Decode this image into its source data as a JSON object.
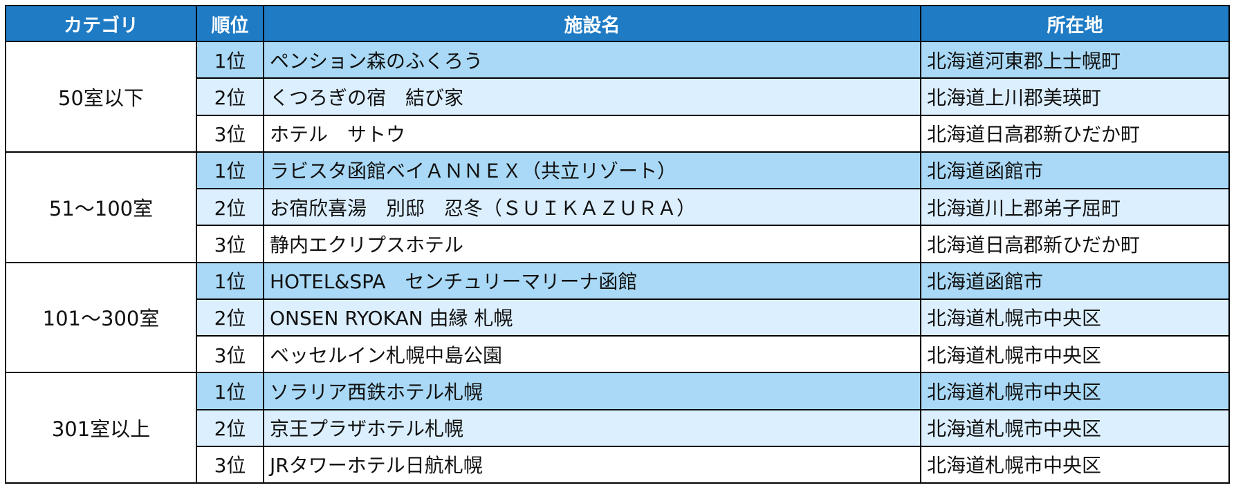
{
  "headers": {
    "category": "カテゴリ",
    "rank": "順位",
    "facility": "施設名",
    "location": "所在地"
  },
  "groups": [
    {
      "category": "50室以下",
      "rows": [
        {
          "rank": "1位",
          "facility": "ペンション森のふくろう",
          "location": "北海道河東郡上士幌町"
        },
        {
          "rank": "2位",
          "facility": "くつろぎの宿　結び家",
          "location": "北海道上川郡美瑛町"
        },
        {
          "rank": "3位",
          "facility": "ホテル　サトウ",
          "location": "北海道日高郡新ひだか町"
        }
      ]
    },
    {
      "category": "51～100室",
      "rows": [
        {
          "rank": "1位",
          "facility": "ラビスタ函館ベイＡＮＮＥＸ（共立リゾート）",
          "location": "北海道函館市"
        },
        {
          "rank": "2位",
          "facility": "お宿欣喜湯　別邸　忍冬（ＳＵＩＫＡＺＵＲＡ）",
          "location": "北海道川上郡弟子屈町"
        },
        {
          "rank": "3位",
          "facility": "静内エクリプスホテル",
          "location": "北海道日高郡新ひだか町"
        }
      ]
    },
    {
      "category": "101～300室",
      "rows": [
        {
          "rank": "1位",
          "facility": "HOTEL&SPA　センチュリーマリーナ函館",
          "location": "北海道函館市"
        },
        {
          "rank": "2位",
          "facility": "ONSEN RYOKAN 由縁 札幌",
          "location": "北海道札幌市中央区"
        },
        {
          "rank": "3位",
          "facility": "ベッセルイン札幌中島公園",
          "location": "北海道札幌市中央区"
        }
      ]
    },
    {
      "category": "301室以上",
      "rows": [
        {
          "rank": "1位",
          "facility": "ソラリア西鉄ホテル札幌",
          "location": "北海道札幌市中央区"
        },
        {
          "rank": "2位",
          "facility": "京王プラザホテル札幌",
          "location": "北海道札幌市中央区"
        },
        {
          "rank": "3位",
          "facility": "JRタワーホテル日航札幌",
          "location": "北海道札幌市中央区"
        }
      ]
    }
  ],
  "colors": {
    "header_bg": "#1f7bc4",
    "row1_bg": "#a9d9f6",
    "row2_bg": "#dcefff",
    "row3_bg": "#ffffff"
  }
}
